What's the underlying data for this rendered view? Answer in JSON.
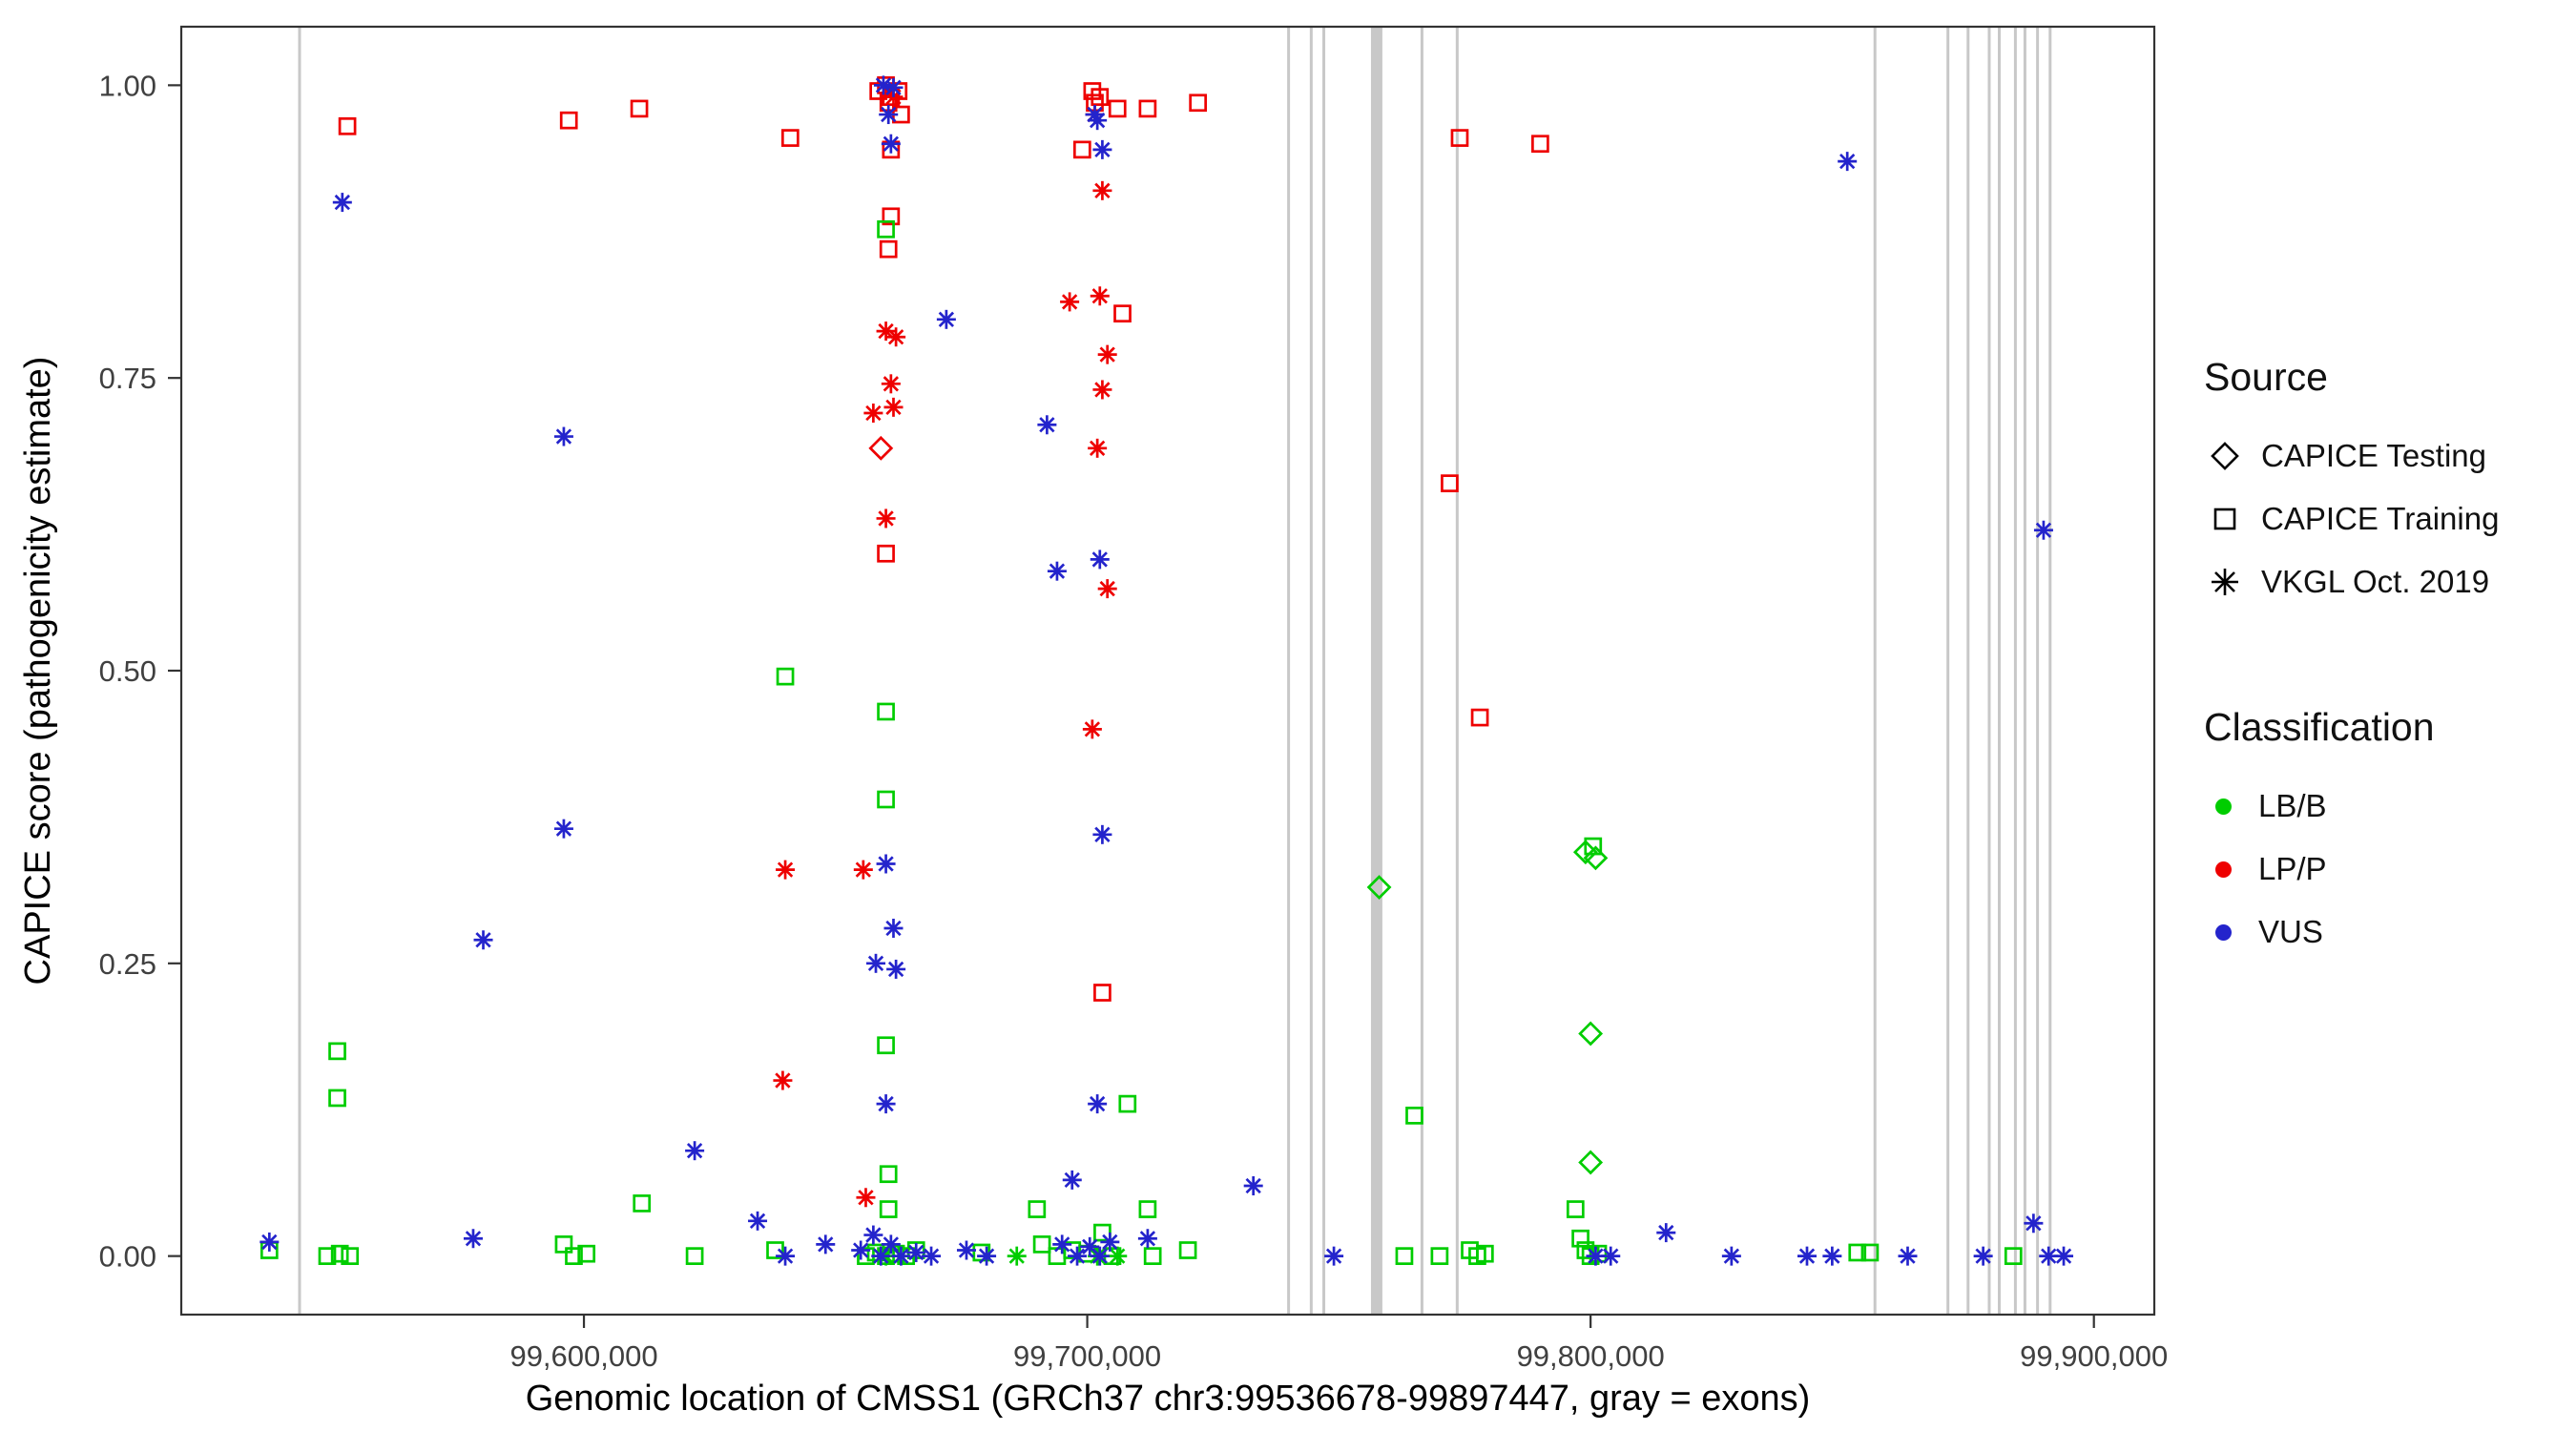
{
  "chart_data": {
    "type": "scatter",
    "title": "",
    "xlabel": "Genomic location of CMSS1 (GRCh37 chr3:99536678-99897447, gray = exons)",
    "ylabel": "CAPICE score (pathogenicity estimate)",
    "xlim": [
      99520000,
      99912000
    ],
    "ylim": [
      -0.05,
      1.05
    ],
    "grid": false,
    "xticks": [
      {
        "value": 99600000,
        "label": "99,600,000"
      },
      {
        "value": 99700000,
        "label": "99,700,000"
      },
      {
        "value": 99800000,
        "label": "99,800,000"
      },
      {
        "value": 99900000,
        "label": "99,900,000"
      }
    ],
    "yticks": [
      {
        "value": 0.0,
        "label": "0.00"
      },
      {
        "value": 0.25,
        "label": "0.25"
      },
      {
        "value": 0.5,
        "label": "0.50"
      },
      {
        "value": 0.75,
        "label": "0.75"
      },
      {
        "value": 1.0,
        "label": "1.00"
      }
    ],
    "exon_color": "#c8c8c8",
    "exons": [
      {
        "pos": 99543500,
        "w": 3
      },
      {
        "pos": 99740000,
        "w": 3
      },
      {
        "pos": 99744500,
        "w": 3
      },
      {
        "pos": 99747000,
        "w": 3
      },
      {
        "pos": 99757500,
        "w": 12
      },
      {
        "pos": 99766500,
        "w": 3
      },
      {
        "pos": 99773500,
        "w": 3
      },
      {
        "pos": 99856500,
        "w": 3
      },
      {
        "pos": 99871000,
        "w": 3
      },
      {
        "pos": 99875000,
        "w": 3
      },
      {
        "pos": 99879200,
        "w": 3
      },
      {
        "pos": 99881200,
        "w": 3
      },
      {
        "pos": 99884400,
        "w": 3
      },
      {
        "pos": 99886300,
        "w": 3
      },
      {
        "pos": 99888800,
        "w": 3
      },
      {
        "pos": 99891300,
        "w": 3
      }
    ],
    "colors": {
      "LB_B": "#00CD00",
      "LP_P": "#EE0000",
      "VUS": "#2424CC"
    },
    "series": [
      {
        "name": "LP/P — CAPICE Training",
        "source": "CAPICE Training",
        "classification": "LP/P",
        "marker": "square",
        "color": "#EE0000",
        "points": [
          [
            99553000,
            0.965
          ],
          [
            99597000,
            0.97
          ],
          [
            99611000,
            0.98
          ],
          [
            99641000,
            0.955
          ],
          [
            99658500,
            0.995
          ],
          [
            99660000,
            1.0
          ],
          [
            99661000,
            0.99
          ],
          [
            99662500,
            0.995
          ],
          [
            99660500,
            0.985
          ],
          [
            99663000,
            0.975
          ],
          [
            99661000,
            0.945
          ],
          [
            99661000,
            0.888
          ],
          [
            99660500,
            0.86
          ],
          [
            99660000,
            0.6
          ],
          [
            99699000,
            0.945
          ],
          [
            99701000,
            0.995
          ],
          [
            99701500,
            0.985
          ],
          [
            99702500,
            0.99
          ],
          [
            99706000,
            0.98
          ],
          [
            99712000,
            0.98
          ],
          [
            99722000,
            0.985
          ],
          [
            99707000,
            0.805
          ],
          [
            99703000,
            0.225
          ],
          [
            99774000,
            0.955
          ],
          [
            99790000,
            0.95
          ],
          [
            99772000,
            0.66
          ],
          [
            99778000,
            0.46
          ]
        ]
      },
      {
        "name": "LP/P — VKGL Oct. 2019",
        "source": "VKGL Oct. 2019",
        "classification": "LP/P",
        "marker": "asterisk",
        "color": "#EE0000",
        "points": [
          [
            99661500,
            0.99
          ],
          [
            99701500,
            0.975
          ],
          [
            99660000,
            0.79
          ],
          [
            99662000,
            0.785
          ],
          [
            99661000,
            0.745
          ],
          [
            99657500,
            0.72
          ],
          [
            99661500,
            0.725
          ],
          [
            99660000,
            0.63
          ],
          [
            99640000,
            0.33
          ],
          [
            99655500,
            0.33
          ],
          [
            99639500,
            0.15
          ],
          [
            99656000,
            0.05
          ],
          [
            99703000,
            0.91
          ],
          [
            99696500,
            0.815
          ],
          [
            99702500,
            0.82
          ],
          [
            99704000,
            0.77
          ],
          [
            99703000,
            0.74
          ],
          [
            99702000,
            0.69
          ],
          [
            99704000,
            0.57
          ],
          [
            99701000,
            0.45
          ]
        ]
      },
      {
        "name": "LP/P — CAPICE Testing",
        "source": "CAPICE Testing",
        "classification": "LP/P",
        "marker": "diamond",
        "color": "#EE0000",
        "points": [
          [
            99659000,
            0.69
          ]
        ]
      },
      {
        "name": "LB/B — CAPICE Training",
        "source": "CAPICE Training",
        "classification": "LB/B",
        "marker": "square",
        "color": "#00CD00",
        "points": [
          [
            99551000,
            0.175
          ],
          [
            99551000,
            0.135
          ],
          [
            99640000,
            0.495
          ],
          [
            99660000,
            0.877
          ],
          [
            99660000,
            0.465
          ],
          [
            99660000,
            0.39
          ],
          [
            99660000,
            0.18
          ],
          [
            99611500,
            0.045
          ],
          [
            99660500,
            0.07
          ],
          [
            99660500,
            0.04
          ],
          [
            99537500,
            0.005
          ],
          [
            99549000,
            0.0
          ],
          [
            99551500,
            0.002
          ],
          [
            99553500,
            0.0
          ],
          [
            99596000,
            0.01
          ],
          [
            99598000,
            0.0
          ],
          [
            99600500,
            0.002
          ],
          [
            99622000,
            0.0
          ],
          [
            99638000,
            0.005
          ],
          [
            99656000,
            0.0
          ],
          [
            99658000,
            0.003
          ],
          [
            99660000,
            0.0
          ],
          [
            99662000,
            0.002
          ],
          [
            99664000,
            0.0
          ],
          [
            99666000,
            0.005
          ],
          [
            99679000,
            0.003
          ],
          [
            99690000,
            0.04
          ],
          [
            99691000,
            0.01
          ],
          [
            99694000,
            0.0
          ],
          [
            99697000,
            0.005
          ],
          [
            99700000,
            0.002
          ],
          [
            99703000,
            0.02
          ],
          [
            99705000,
            0.0
          ],
          [
            99708000,
            0.13
          ],
          [
            99712000,
            0.04
          ],
          [
            99713000,
            0.0
          ],
          [
            99720000,
            0.005
          ],
          [
            99765000,
            0.12
          ],
          [
            99763000,
            0.0
          ],
          [
            99770000,
            0.0
          ],
          [
            99776000,
            0.005
          ],
          [
            99777500,
            0.0
          ],
          [
            99779000,
            0.002
          ],
          [
            99800500,
            0.35
          ],
          [
            99797000,
            0.04
          ],
          [
            99798000,
            0.015
          ],
          [
            99799000,
            0.005
          ],
          [
            99800000,
            0.0
          ],
          [
            99801500,
            0.002
          ],
          [
            99853000,
            0.003
          ],
          [
            99855500,
            0.003
          ],
          [
            99884000,
            0.0
          ]
        ]
      },
      {
        "name": "LB/B — CAPICE Testing",
        "source": "CAPICE Testing",
        "classification": "LB/B",
        "marker": "diamond",
        "color": "#00CD00",
        "points": [
          [
            99758000,
            0.315
          ],
          [
            99799000,
            0.345
          ],
          [
            99801000,
            0.34
          ],
          [
            99800000,
            0.19
          ],
          [
            99800000,
            0.08
          ]
        ]
      },
      {
        "name": "LB/B — VKGL Oct. 2019",
        "source": "VKGL Oct. 2019",
        "classification": "LB/B",
        "marker": "asterisk",
        "color": "#00CD00",
        "points": [
          [
            99660000,
            0.0
          ],
          [
            99686000,
            0.0
          ],
          [
            99702000,
            0.0
          ],
          [
            99706000,
            0.0
          ]
        ]
      },
      {
        "name": "VUS — VKGL Oct. 2019",
        "source": "VKGL Oct. 2019",
        "classification": "VUS",
        "marker": "asterisk",
        "color": "#2424CC",
        "points": [
          [
            99552000,
            0.9
          ],
          [
            99659500,
            1.0
          ],
          [
            99661500,
            0.998
          ],
          [
            99660500,
            0.975
          ],
          [
            99661000,
            0.95
          ],
          [
            99701500,
            0.975
          ],
          [
            99702000,
            0.97
          ],
          [
            99703000,
            0.945
          ],
          [
            99851000,
            0.935
          ],
          [
            99596000,
            0.7
          ],
          [
            99672000,
            0.8
          ],
          [
            99692000,
            0.71
          ],
          [
            99694000,
            0.585
          ],
          [
            99702500,
            0.595
          ],
          [
            99890000,
            0.62
          ],
          [
            99596000,
            0.365
          ],
          [
            99703000,
            0.36
          ],
          [
            99580000,
            0.27
          ],
          [
            99660000,
            0.335
          ],
          [
            99661500,
            0.28
          ],
          [
            99658000,
            0.25
          ],
          [
            99662000,
            0.245
          ],
          [
            99660000,
            0.13
          ],
          [
            99702000,
            0.13
          ],
          [
            99622000,
            0.09
          ],
          [
            99697000,
            0.065
          ],
          [
            99733000,
            0.06
          ],
          [
            99634500,
            0.03
          ],
          [
            99537500,
            0.012
          ],
          [
            99578000,
            0.015
          ],
          [
            99640000,
            0.0
          ],
          [
            99648000,
            0.01
          ],
          [
            99655000,
            0.005
          ],
          [
            99657500,
            0.018
          ],
          [
            99659000,
            0.0
          ],
          [
            99661000,
            0.01
          ],
          [
            99663000,
            0.0
          ],
          [
            99666000,
            0.003
          ],
          [
            99669000,
            0.0
          ],
          [
            99676000,
            0.005
          ],
          [
            99680000,
            0.0
          ],
          [
            99695000,
            0.01
          ],
          [
            99698000,
            0.0
          ],
          [
            99700500,
            0.008
          ],
          [
            99702500,
            0.0
          ],
          [
            99704500,
            0.012
          ],
          [
            99712000,
            0.015
          ],
          [
            99749000,
            0.0
          ],
          [
            99801000,
            0.0
          ],
          [
            99804000,
            0.0
          ],
          [
            99815000,
            0.02
          ],
          [
            99828000,
            0.0
          ],
          [
            99843000,
            0.0
          ],
          [
            99848000,
            0.0
          ],
          [
            99863000,
            0.0
          ],
          [
            99878000,
            0.0
          ],
          [
            99888000,
            0.028
          ],
          [
            99891000,
            0.0
          ],
          [
            99894000,
            0.0
          ]
        ]
      }
    ],
    "legend": {
      "source": {
        "title": "Source",
        "items": [
          "CAPICE Testing",
          "CAPICE Training",
          "VKGL Oct. 2019"
        ]
      },
      "classification": {
        "title": "Classification",
        "items": [
          {
            "label": "LB/B",
            "color": "#00CD00"
          },
          {
            "label": "LP/P",
            "color": "#EE0000"
          },
          {
            "label": "VUS",
            "color": "#2424CC"
          }
        ]
      }
    }
  }
}
